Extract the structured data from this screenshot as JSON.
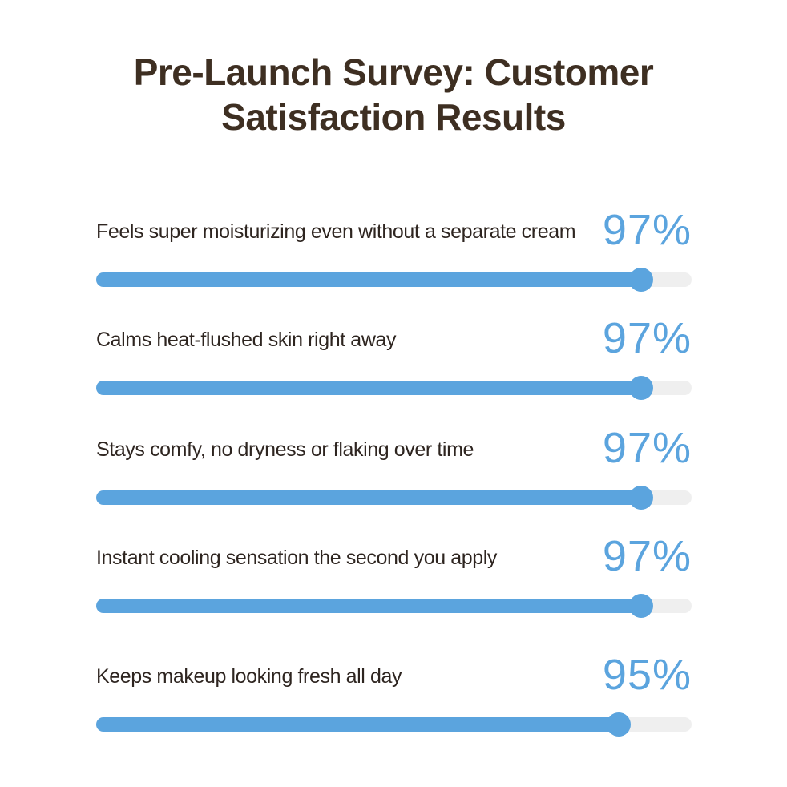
{
  "title": {
    "line1": "Pre-Launch Survey: Customer",
    "line2": "Satisfaction Results"
  },
  "colors": {
    "title": "#3e2f22",
    "accent": "#5ba4de",
    "track": "#efefef",
    "label": "#2e2520"
  },
  "chart_data": {
    "type": "bar",
    "orientation": "horizontal",
    "title": "Pre-Launch Survey: Customer Satisfaction Results",
    "categories": [
      "Feels super moisturizing even without a separate cream",
      "Calms heat-flushed skin right away",
      "Stays comfy, no dryness or flaking over time",
      "Instant cooling sensation the second you apply",
      "Keeps makeup looking fresh all day"
    ],
    "values": [
      97,
      97,
      97,
      97,
      95
    ],
    "value_labels": [
      "97%",
      "97%",
      "97%",
      "97%",
      "95%"
    ],
    "xlim": [
      0,
      100
    ],
    "unit": "%",
    "grid": false,
    "legend": "none"
  }
}
